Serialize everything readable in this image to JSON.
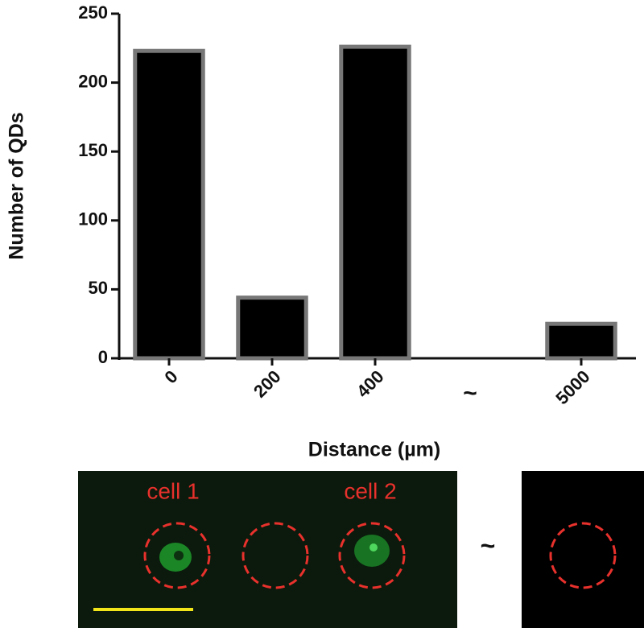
{
  "chart_data": {
    "type": "bar",
    "categories": [
      "0",
      "200",
      "400",
      "~",
      "5000"
    ],
    "values": [
      223,
      44,
      226,
      null,
      25
    ],
    "color": "#000000",
    "edge_color": "#777777",
    "xlabel": "Distance (µm)",
    "ylabel": "Number of QDs",
    "ylim": [
      0,
      250
    ],
    "yticks": [
      0,
      50,
      100,
      150,
      200,
      250
    ],
    "grid": false
  },
  "micrograph": {
    "labels": [
      "cell 1",
      "cell 2"
    ],
    "separator": "~"
  }
}
